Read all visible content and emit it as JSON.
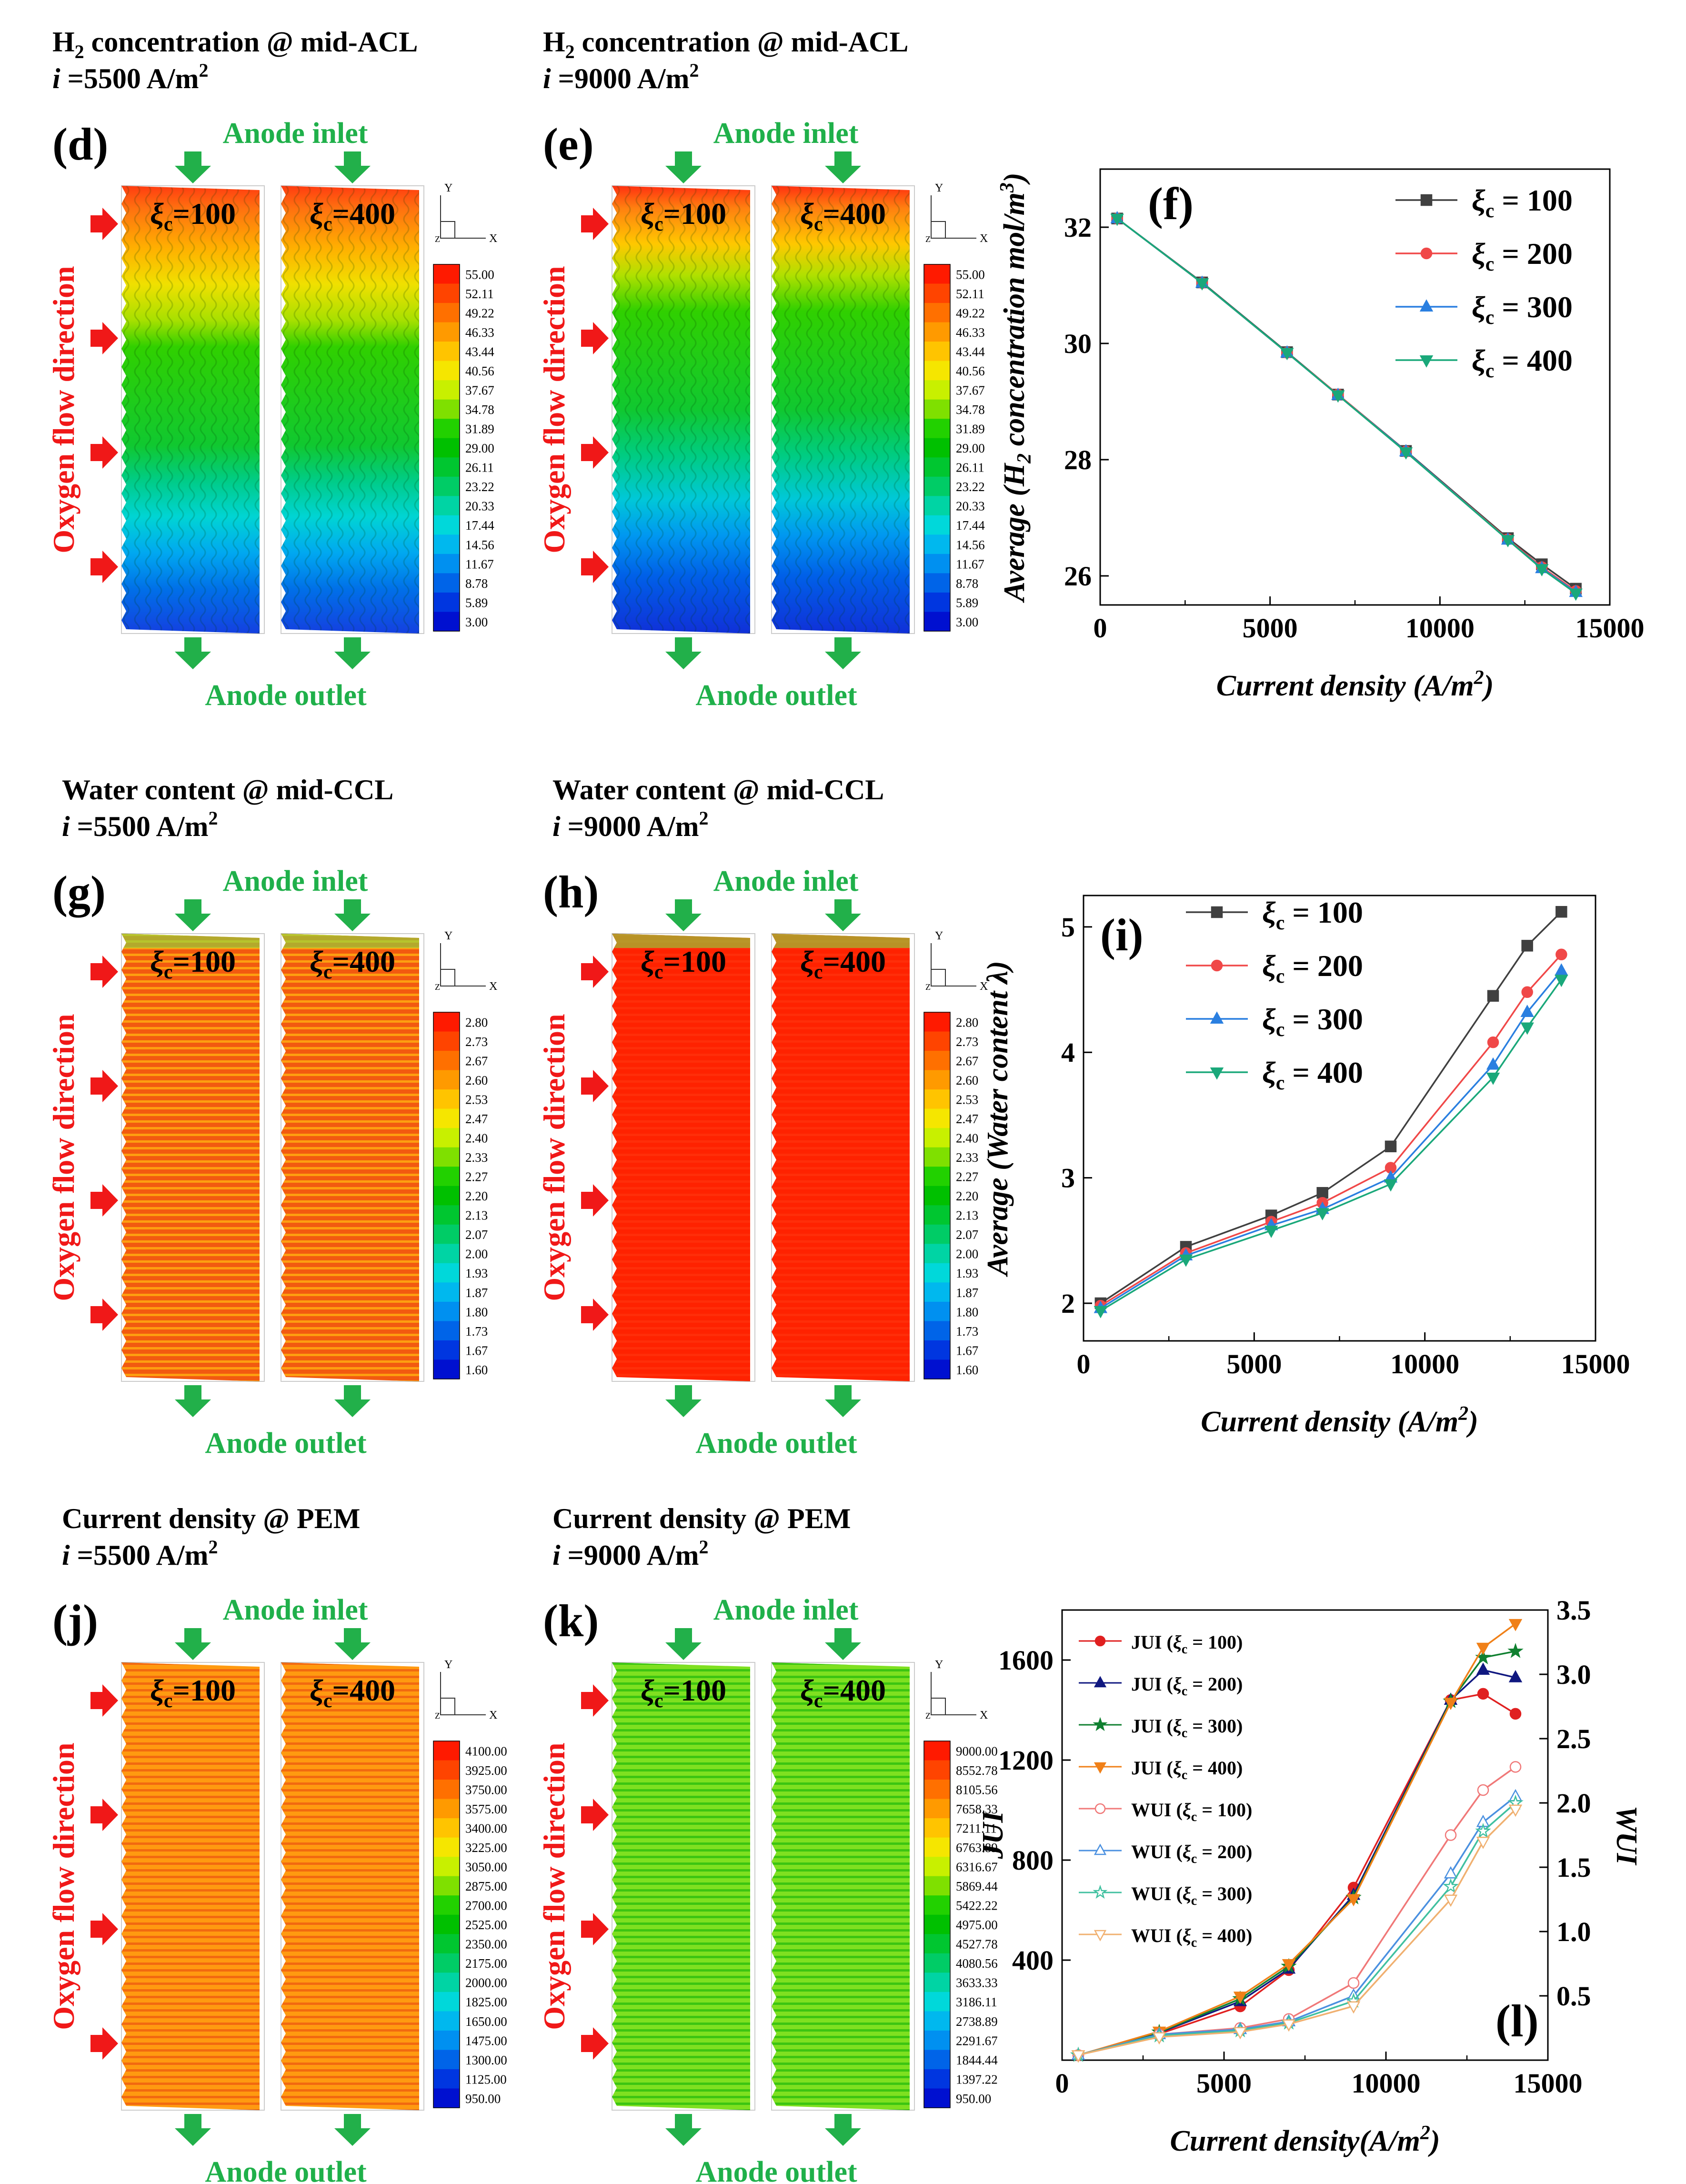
{
  "colorbars": {
    "h2": [
      "55.00",
      "52.11",
      "49.22",
      "46.33",
      "43.44",
      "40.56",
      "37.67",
      "34.78",
      "31.89",
      "29.00",
      "26.11",
      "23.22",
      "20.33",
      "17.44",
      "14.56",
      "11.67",
      "8.78",
      "5.89",
      "3.00"
    ],
    "water": [
      "2.80",
      "2.73",
      "2.67",
      "2.60",
      "2.53",
      "2.47",
      "2.40",
      "2.33",
      "2.27",
      "2.20",
      "2.13",
      "2.07",
      "2.00",
      "1.93",
      "1.87",
      "1.80",
      "1.73",
      "1.67",
      "1.60"
    ],
    "cur_j": [
      "4100.00",
      "3925.00",
      "3750.00",
      "3575.00",
      "3400.00",
      "3225.00",
      "3050.00",
      "2875.00",
      "2700.00",
      "2525.00",
      "2350.00",
      "2175.00",
      "2000.00",
      "1825.00",
      "1650.00",
      "1475.00",
      "1300.00",
      "1125.00",
      "950.00"
    ],
    "cur_k": [
      "9000.00",
      "8552.78",
      "8105.56",
      "7658.33",
      "7211.11",
      "6763.89",
      "6316.67",
      "5869.44",
      "5422.22",
      "4975.00",
      "4527.78",
      "4080.56",
      "3633.33",
      "3186.11",
      "2738.89",
      "2291.67",
      "1844.44",
      "1397.22",
      "950.00"
    ],
    "colors": [
      "#ff1a00",
      "#ff4400",
      "#ff7000",
      "#ff9a00",
      "#ffc400",
      "#f5e600",
      "#c8f000",
      "#7fe000",
      "#22d100",
      "#00c000",
      "#00c630",
      "#00cc66",
      "#00d4a4",
      "#00d8da",
      "#00b8ee",
      "#0090f0",
      "#0064e8",
      "#0036e0",
      "#0010d0"
    ]
  },
  "maps": [
    {
      "id": "d",
      "label": "(d)",
      "title_line1": "H",
      "title_sub": "2",
      "title_rest": " concentration @ mid-ACL",
      "title_line2_i": "i",
      "title_line2_val": " =5500 A/m",
      "title_sup": "2",
      "inlet": "Anode inlet",
      "outlet": "Anode outlet",
      "side": "Oxygen flow direction",
      "xi_left": "ξ",
      "xi_left_sub": "c",
      "xi_left_val": "=100",
      "xi_right": "ξ",
      "xi_right_sub": "c",
      "xi_right_val": "=400",
      "axis_y": "Y",
      "axis_x": "X",
      "axis_z": "Z",
      "colorbar": "h2"
    },
    {
      "id": "e",
      "label": "(e)",
      "title_line1": "H",
      "title_sub": "2",
      "title_rest": " concentration @ mid-ACL",
      "title_line2_i": "i",
      "title_line2_val": " =9000 A/m",
      "title_sup": "2",
      "inlet": "Anode inlet",
      "outlet": "Anode outlet",
      "side": "Oxygen flow direction",
      "xi_left": "ξ",
      "xi_left_sub": "c",
      "xi_left_val": "=100",
      "xi_right": "ξ",
      "xi_right_sub": "c",
      "xi_right_val": "=400",
      "axis_y": "Y",
      "axis_x": "X",
      "axis_z": "Z",
      "colorbar": "h2"
    },
    {
      "id": "g",
      "label": "(g)",
      "title_line1": "Water content @ mid-CCL",
      "title_sub": "",
      "title_rest": "",
      "title_line2_i": "i",
      "title_line2_val": " =5500 A/m",
      "title_sup": "2",
      "inlet": "Anode inlet",
      "outlet": "Anode outlet",
      "side": "Oxygen flow direction",
      "xi_left": "ξ",
      "xi_left_sub": "c",
      "xi_left_val": "=100",
      "xi_right": "ξ",
      "xi_right_sub": "c",
      "xi_right_val": "=400",
      "axis_y": "Y",
      "axis_x": "X",
      "axis_z": "Z",
      "colorbar": "water"
    },
    {
      "id": "h",
      "label": "(h)",
      "title_line1": "Water content @ mid-CCL",
      "title_sub": "",
      "title_rest": "",
      "title_line2_i": "i",
      "title_line2_val": " =9000 A/m",
      "title_sup": "2",
      "inlet": "Anode inlet",
      "outlet": "Anode outlet",
      "side": "Oxygen flow direction",
      "xi_left": "ξ",
      "xi_left_sub": "c",
      "xi_left_val": "=100",
      "xi_right": "ξ",
      "xi_right_sub": "c",
      "xi_right_val": "=400",
      "axis_y": "Y",
      "axis_x": "X",
      "axis_z": "Z",
      "colorbar": "water"
    },
    {
      "id": "j",
      "label": "(j)",
      "title_line1": "Current density @ PEM",
      "title_sub": "",
      "title_rest": "",
      "title_line2_i": "i",
      "title_line2_val": " =5500 A/m",
      "title_sup": "2",
      "inlet": "Anode inlet",
      "outlet": "Anode outlet",
      "side": "Oxygen flow direction",
      "xi_left": "ξ",
      "xi_left_sub": "c",
      "xi_left_val": "=100",
      "xi_right": "ξ",
      "xi_right_sub": "c",
      "xi_right_val": "=400",
      "axis_y": "Y",
      "axis_x": "X",
      "axis_z": "Z",
      "colorbar": "cur_j"
    },
    {
      "id": "k",
      "label": "(k)",
      "title_line1": "Current density @ PEM",
      "title_sub": "",
      "title_rest": "",
      "title_line2_i": "i",
      "title_line2_val": " =9000 A/m",
      "title_sup": "2",
      "inlet": "Anode inlet",
      "outlet": "Anode outlet",
      "side": "Oxygen flow direction",
      "xi_left": "ξ",
      "xi_left_sub": "c",
      "xi_left_val": "=100",
      "xi_right": "ξ",
      "xi_right_sub": "c",
      "xi_right_val": "=400",
      "axis_y": "Y",
      "axis_x": "X",
      "axis_z": "Z",
      "colorbar": "cur_k"
    }
  ],
  "chart_data": [
    {
      "id": "f",
      "label": "(f)",
      "type": "line",
      "xlabel": "Current density",
      "xlabel_unit": "(A/m",
      "xlabel_sup": "2",
      "xlabel_close": ")",
      "ylabel": "Average (H",
      "ylabel_sub": "2",
      "ylabel_rest": " concentration mol/m",
      "ylabel_sup": "3",
      "ylabel_close": ")",
      "xlim": [
        0,
        15000
      ],
      "ylim": [
        25.5,
        33
      ],
      "xticks": [
        "0",
        "5000",
        "10000",
        "15000"
      ],
      "xtick_values": [
        0,
        5000,
        10000,
        15000
      ],
      "yticks": [
        "26",
        "28",
        "30",
        "32"
      ],
      "ytick_values": [
        26,
        28,
        30,
        32
      ],
      "legend_prefix": "ξ",
      "legend_sub": "c",
      "series": [
        {
          "name": " = 100",
          "color": "#404040",
          "marker": "square",
          "x": [
            500,
            3000,
            5500,
            7000,
            9000,
            12000,
            13000,
            14000
          ],
          "values": [
            32.15,
            31.05,
            29.85,
            29.12,
            28.15,
            26.65,
            26.2,
            25.78
          ]
        },
        {
          "name": " = 200",
          "color": "#f04848",
          "marker": "circle",
          "x": [
            500,
            3000,
            5500,
            7000,
            9000,
            12000,
            13000,
            14000
          ],
          "values": [
            32.15,
            31.04,
            29.84,
            29.12,
            28.14,
            26.63,
            26.15,
            25.74
          ]
        },
        {
          "name": " = 300",
          "color": "#2a7fe0",
          "marker": "triangle",
          "x": [
            500,
            3000,
            5500,
            7000,
            9000,
            12000,
            13000,
            14000
          ],
          "values": [
            32.15,
            31.04,
            29.84,
            29.11,
            28.14,
            26.62,
            26.13,
            25.72
          ]
        },
        {
          "name": " = 400",
          "color": "#1aa87a",
          "marker": "triangle-down",
          "x": [
            500,
            3000,
            5500,
            7000,
            9000,
            12000,
            13000,
            14000
          ],
          "values": [
            32.15,
            31.04,
            29.84,
            29.11,
            28.13,
            26.62,
            26.12,
            25.7
          ]
        }
      ]
    },
    {
      "id": "i",
      "label": "(i)",
      "type": "line",
      "xlabel": "Current density",
      "xlabel_unit": "(A/m",
      "xlabel_sup": "2",
      "xlabel_close": ")",
      "ylabel": "Average (Water content  λ)",
      "xlim": [
        0,
        15000
      ],
      "ylim": [
        1.7,
        5.25
      ],
      "xticks": [
        "0",
        "5000",
        "10000",
        "15000"
      ],
      "xtick_values": [
        0,
        5000,
        10000,
        15000
      ],
      "yticks": [
        "2",
        "3",
        "4",
        "5"
      ],
      "ytick_values": [
        2,
        3,
        4,
        5
      ],
      "legend_prefix": "ξ",
      "legend_sub": "c",
      "series": [
        {
          "name": " = 100",
          "color": "#404040",
          "marker": "square",
          "x": [
            500,
            3000,
            5500,
            7000,
            9000,
            12000,
            13000,
            14000
          ],
          "values": [
            2.0,
            2.45,
            2.7,
            2.88,
            3.25,
            4.45,
            4.85,
            5.12
          ]
        },
        {
          "name": " = 200",
          "color": "#f04848",
          "marker": "circle",
          "x": [
            500,
            3000,
            5500,
            7000,
            9000,
            12000,
            13000,
            14000
          ],
          "values": [
            1.98,
            2.4,
            2.65,
            2.8,
            3.08,
            4.08,
            4.48,
            4.78
          ]
        },
        {
          "name": " = 300",
          "color": "#2a7fe0",
          "marker": "triangle",
          "x": [
            500,
            3000,
            5500,
            7000,
            9000,
            12000,
            13000,
            14000
          ],
          "values": [
            1.96,
            2.38,
            2.62,
            2.75,
            3.0,
            3.9,
            4.32,
            4.65
          ]
        },
        {
          "name": " = 400",
          "color": "#1aa87a",
          "marker": "triangle-down",
          "x": [
            500,
            3000,
            5500,
            7000,
            9000,
            12000,
            13000,
            14000
          ],
          "values": [
            1.94,
            2.35,
            2.58,
            2.72,
            2.95,
            3.8,
            4.2,
            4.58
          ]
        }
      ]
    },
    {
      "id": "l",
      "label": "(l)",
      "type": "line",
      "xlabel": "Current density(A/m",
      "xlabel_sup": "2",
      "xlabel_close": ")",
      "ylabel": "JUI",
      "y2label": "WUI",
      "xlim": [
        0,
        15000
      ],
      "ylim": [
        0,
        1800
      ],
      "y2lim": [
        0,
        3.5
      ],
      "xticks": [
        "0",
        "5000",
        "10000",
        "15000"
      ],
      "xtick_values": [
        0,
        5000,
        10000,
        15000
      ],
      "yticks": [
        "400",
        "800",
        "1200",
        "1600"
      ],
      "ytick_values": [
        400,
        800,
        1200,
        1600
      ],
      "y2ticks": [
        "0.5",
        "1.0",
        "1.5",
        "2.0",
        "2.5",
        "3.0",
        "3.5"
      ],
      "y2tick_values": [
        0.5,
        1.0,
        1.5,
        2.0,
        2.5,
        3.0,
        3.5
      ],
      "legend_sub": "c",
      "series": [
        {
          "name": "JUI (",
          "xi": "ξ",
          "tail": " = 100)",
          "color": "#e02020",
          "marker": "circle",
          "fill": true,
          "axis": "left",
          "x": [
            500,
            3000,
            5500,
            7000,
            9000,
            12000,
            13000,
            14000
          ],
          "values": [
            20,
            105,
            215,
            360,
            690,
            1440,
            1465,
            1385
          ]
        },
        {
          "name": "JUI (",
          "xi": "ξ",
          "tail": " = 200)",
          "color": "#101880",
          "marker": "triangle",
          "fill": true,
          "axis": "left",
          "x": [
            500,
            3000,
            5500,
            7000,
            9000,
            12000,
            13000,
            14000
          ],
          "values": [
            20,
            110,
            235,
            365,
            660,
            1440,
            1560,
            1530
          ]
        },
        {
          "name": "JUI (",
          "xi": "ξ",
          "tail": " = 300)",
          "color": "#108030",
          "marker": "star",
          "fill": true,
          "axis": "left",
          "x": [
            500,
            3000,
            5500,
            7000,
            9000,
            12000,
            13000,
            14000
          ],
          "values": [
            20,
            112,
            245,
            375,
            650,
            1435,
            1610,
            1635
          ]
        },
        {
          "name": "JUI (",
          "xi": "ξ",
          "tail": " = 400)",
          "color": "#f08018",
          "marker": "triangle-down",
          "fill": true,
          "axis": "left",
          "x": [
            500,
            3000,
            5500,
            7000,
            9000,
            12000,
            13000,
            14000
          ],
          "values": [
            20,
            115,
            255,
            385,
            645,
            1430,
            1650,
            1745
          ]
        },
        {
          "name": "WUI (",
          "xi": "ξ",
          "tail": " = 100)",
          "color": "#f07878",
          "marker": "circle",
          "fill": false,
          "axis": "right",
          "x": [
            500,
            3000,
            5500,
            7000,
            9000,
            12000,
            13000,
            14000
          ],
          "values": [
            0.04,
            0.2,
            0.25,
            0.32,
            0.6,
            1.75,
            2.1,
            2.28
          ]
        },
        {
          "name": "WUI (",
          "xi": "ξ",
          "tail": " = 200)",
          "color": "#4a90e0",
          "marker": "triangle",
          "fill": false,
          "axis": "right",
          "x": [
            500,
            3000,
            5500,
            7000,
            9000,
            12000,
            13000,
            14000
          ],
          "values": [
            0.04,
            0.2,
            0.24,
            0.3,
            0.5,
            1.45,
            1.85,
            2.05
          ]
        },
        {
          "name": "WUI (",
          "xi": "ξ",
          "tail": " = 300)",
          "color": "#40c0a0",
          "marker": "star",
          "fill": false,
          "axis": "right",
          "x": [
            500,
            3000,
            5500,
            7000,
            9000,
            12000,
            13000,
            14000
          ],
          "values": [
            0.04,
            0.19,
            0.23,
            0.29,
            0.46,
            1.35,
            1.78,
            2.0
          ]
        },
        {
          "name": "WUI (",
          "xi": "ξ",
          "tail": " = 400)",
          "color": "#f0b070",
          "marker": "triangle-down",
          "fill": false,
          "axis": "right",
          "x": [
            500,
            3000,
            5500,
            7000,
            9000,
            12000,
            13000,
            14000
          ],
          "values": [
            0.04,
            0.18,
            0.22,
            0.28,
            0.42,
            1.25,
            1.7,
            1.95
          ]
        }
      ]
    }
  ]
}
